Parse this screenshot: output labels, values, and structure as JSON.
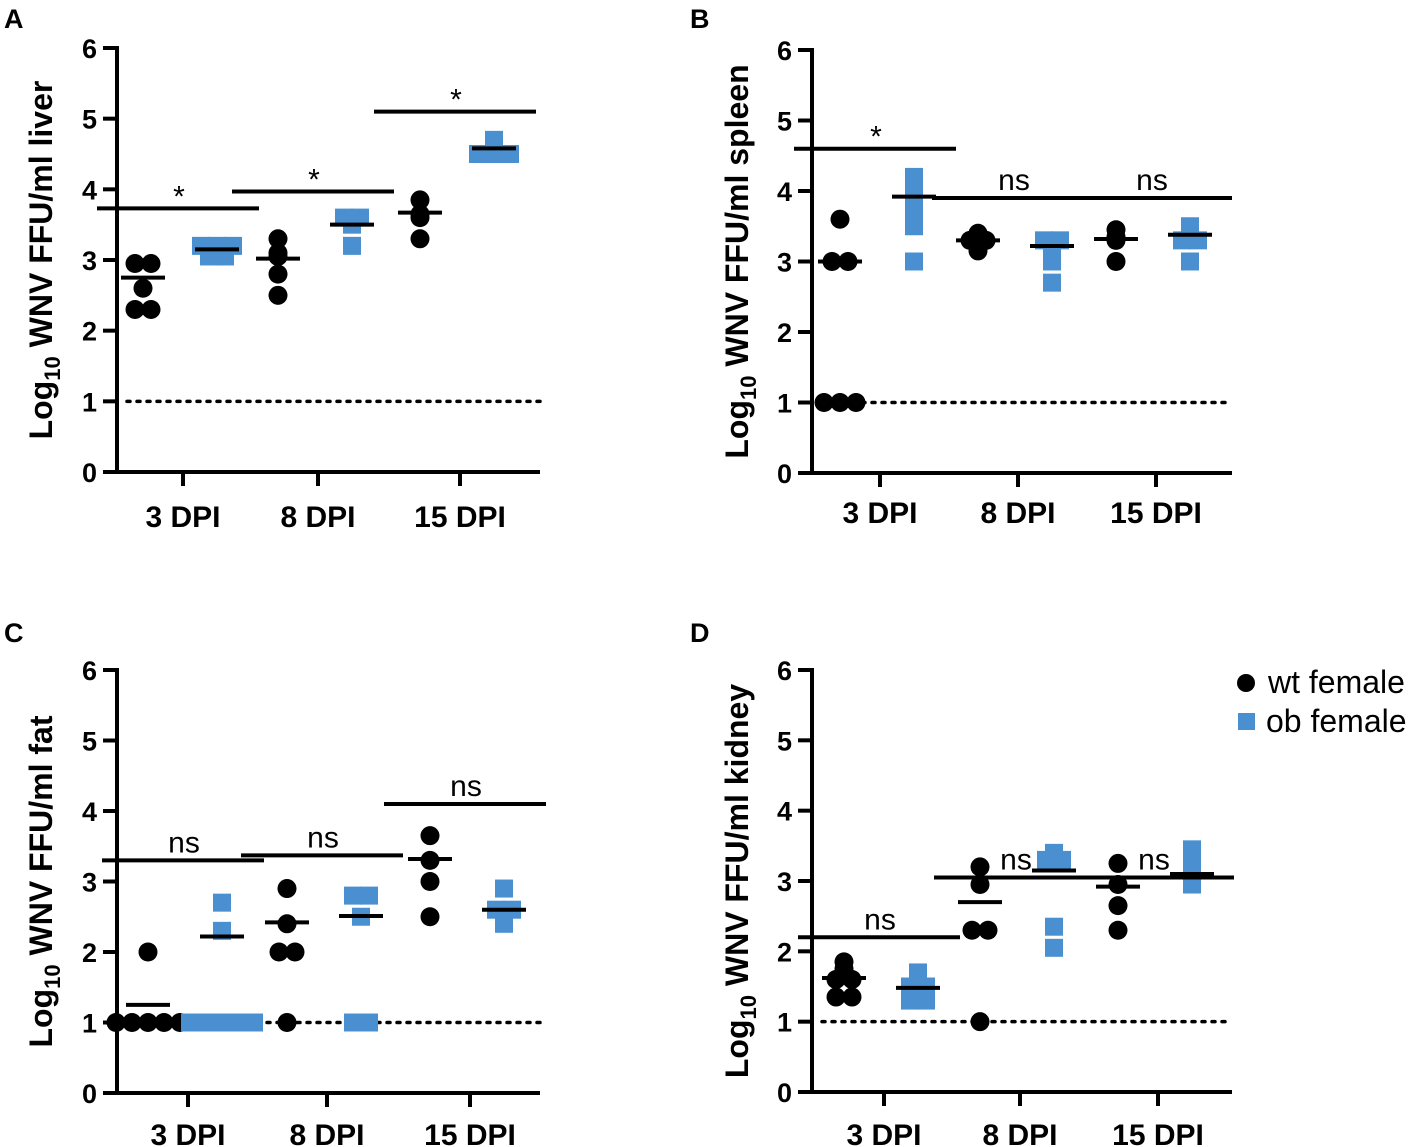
{
  "colors": {
    "wt": "#000000",
    "ob": "#4a90d0"
  },
  "legend": {
    "wt_label": "wt female",
    "ob_label": "ob female"
  },
  "chart_data": [
    {
      "panel": "A",
      "type": "scatter",
      "title": "",
      "ylabel_prefix": "Log",
      "ylabel_sub": "10",
      "ylabel_rest": " WNV FFU/ml liver",
      "categories": [
        "3 DPI",
        "8 DPI",
        "15 DPI"
      ],
      "ylim": [
        0,
        6
      ],
      "yticks": [
        "0",
        "1",
        "2",
        "3",
        "4",
        "5",
        "6"
      ],
      "limit_of_detection": 1,
      "series": [
        {
          "name": "wt female",
          "values": [
            [
              2.3,
              2.3,
              2.6,
              2.95,
              2.95
            ],
            [
              2.5,
              2.8,
              3.05,
              3.3,
              3.1
            ],
            [
              3.3,
              3.6,
              3.65,
              3.85
            ]
          ],
          "medians": [
            2.75,
            3.02,
            3.67
          ]
        },
        {
          "name": "ob female",
          "values": [
            [
              3.05,
              3.05,
              3.2,
              3.2,
              3.2
            ],
            [
              3.2,
              3.5,
              3.6,
              3.6
            ],
            [
              4.5,
              4.5,
              4.6,
              4.7,
              4.5
            ]
          ],
          "medians": [
            3.15,
            3.5,
            4.58
          ]
        }
      ],
      "significance": [
        "*",
        "*",
        "*"
      ],
      "significance_y": [
        3.73,
        3.97,
        5.1
      ]
    },
    {
      "panel": "B",
      "type": "scatter",
      "title": "",
      "ylabel_prefix": "Log",
      "ylabel_sub": "10",
      "ylabel_rest": " WNV FFU/ml spleen",
      "categories": [
        "3 DPI",
        "8 DPI",
        "15 DPI"
      ],
      "ylim": [
        0,
        6
      ],
      "yticks": [
        "0",
        "1",
        "2",
        "3",
        "4",
        "5",
        "6"
      ],
      "limit_of_detection": 1,
      "series": [
        {
          "name": "wt female",
          "values": [
            [
              1.0,
              1.0,
              1.0,
              3.0,
              3.0,
              3.6
            ],
            [
              3.15,
              3.3,
              3.4,
              3.35,
              3.3
            ],
            [
              3.0,
              3.3,
              3.45,
              3.35
            ]
          ],
          "medians": [
            3.0,
            3.3,
            3.32
          ]
        },
        {
          "name": "ob female",
          "values": [
            [
              3.0,
              3.5,
              3.9,
              4.0,
              4.2,
              3.7
            ],
            [
              2.7,
              3.2,
              3.3,
              3.0,
              3.3
            ],
            [
              3.0,
              3.3,
              3.5,
              3.3
            ]
          ],
          "medians": [
            3.92,
            3.22,
            3.38
          ]
        }
      ],
      "significance": [
        "*",
        "ns",
        "ns"
      ],
      "significance_y": [
        4.6,
        3.9,
        3.9
      ]
    },
    {
      "panel": "C",
      "type": "scatter",
      "title": "",
      "ylabel_prefix": "Log",
      "ylabel_sub": "10",
      "ylabel_rest": " WNV FFU/ml fat",
      "categories": [
        "3 DPI",
        "8 DPI",
        "15 DPI"
      ],
      "ylim": [
        0,
        6
      ],
      "yticks": [
        "0",
        "1",
        "2",
        "3",
        "4",
        "5",
        "6"
      ],
      "limit_of_detection": 1,
      "series": [
        {
          "name": "wt female",
          "values": [
            [
              1.0,
              1.0,
              1.0,
              1.0,
              1.0,
              2.0
            ],
            [
              1.0,
              2.0,
              2.0,
              2.4,
              2.9
            ],
            [
              2.5,
              3.0,
              3.3,
              3.65
            ]
          ],
          "medians": [
            1.25,
            2.42,
            3.32
          ]
        },
        {
          "name": "ob female",
          "values": [
            [
              1.0,
              1.0,
              1.0,
              1.0,
              1.0,
              2.3,
              2.7
            ],
            [
              1.0,
              1.0,
              2.5,
              2.8,
              2.8
            ],
            [
              2.4,
              2.6,
              2.9,
              2.6
            ]
          ],
          "medians": [
            2.22,
            2.51,
            2.6
          ]
        }
      ],
      "significance": [
        "ns",
        "ns",
        "ns"
      ],
      "significance_y": [
        3.3,
        3.37,
        4.1
      ]
    },
    {
      "panel": "D",
      "type": "scatter",
      "title": "",
      "ylabel_prefix": "Log",
      "ylabel_sub": "10",
      "ylabel_rest": " WNV FFU/ml kidney",
      "categories": [
        "3 DPI",
        "8 DPI",
        "15 DPI"
      ],
      "ylim": [
        0,
        6
      ],
      "yticks": [
        "0",
        "1",
        "2",
        "3",
        "4",
        "5",
        "6"
      ],
      "limit_of_detection": 1,
      "series": [
        {
          "name": "wt female",
          "values": [
            [
              1.35,
              1.35,
              1.6,
              1.6,
              1.85,
              1.75
            ],
            [
              1.0,
              2.3,
              2.3,
              2.95,
              3.2
            ],
            [
              2.3,
              2.65,
              2.95,
              3.25
            ]
          ],
          "medians": [
            1.62,
            2.7,
            2.92
          ]
        },
        {
          "name": "ob female",
          "values": [
            [
              1.3,
              1.3,
              1.5,
              1.5,
              1.7,
              1.6
            ],
            [
              2.05,
              2.35,
              3.3,
              3.4,
              3.3
            ],
            [
              2.95,
              3.1,
              3.2,
              3.45
            ]
          ],
          "medians": [
            1.48,
            3.15,
            3.1
          ]
        }
      ],
      "significance": [
        "ns",
        "ns",
        "ns"
      ],
      "significance_y": [
        2.2,
        3.05,
        3.05
      ]
    }
  ]
}
